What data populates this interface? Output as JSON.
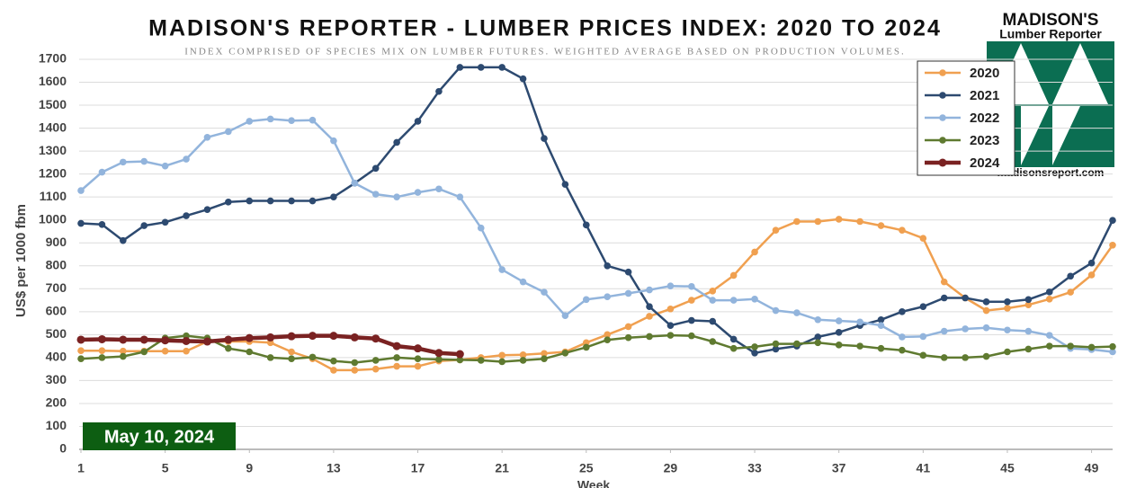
{
  "chart_data": {
    "type": "line",
    "title": "MADISON'S REPORTER - LUMBER PRICES INDEX: 2020 TO 2024",
    "subtitle": "INDEX COMPRISED OF SPECIES MIX ON LUMBER FUTURES. WEIGHTED AVERAGE BASED ON PRODUCTION VOLUMES.",
    "y_label": "US$ per 1000 fbm",
    "x_label": "Week",
    "annotation": "May 10, 2024",
    "logo": {
      "name": "MADISON'S",
      "tagline": "Lumber Reporter",
      "url": "madisonsreport.com"
    },
    "x": [
      1,
      2,
      3,
      4,
      5,
      6,
      7,
      8,
      9,
      10,
      11,
      12,
      13,
      14,
      15,
      16,
      17,
      18,
      19,
      20,
      21,
      22,
      23,
      24,
      25,
      26,
      27,
      28,
      29,
      30,
      31,
      32,
      33,
      34,
      35,
      36,
      37,
      38,
      39,
      40,
      41,
      42,
      43,
      44,
      45,
      46,
      47,
      48,
      49,
      50
    ],
    "xlim": [
      1,
      50
    ],
    "xticks": [
      1,
      5,
      9,
      13,
      17,
      21,
      25,
      29,
      33,
      37,
      41,
      45,
      49
    ],
    "ylim": [
      0,
      1700
    ],
    "yticks": [
      0,
      100,
      200,
      300,
      400,
      500,
      600,
      700,
      800,
      900,
      1000,
      1100,
      1200,
      1300,
      1400,
      1500,
      1600,
      1700
    ],
    "grid": true,
    "legend": "upper right",
    "series": [
      {
        "name": "2020",
        "color": "#f0a050",
        "values": [
          430,
          430,
          428,
          428,
          428,
          428,
          470,
          470,
          470,
          465,
          425,
          395,
          345,
          345,
          350,
          362,
          362,
          385,
          390,
          400,
          410,
          412,
          418,
          425,
          465,
          500,
          535,
          580,
          612,
          650,
          690,
          758,
          860,
          955,
          993,
          993,
          1003,
          993,
          975,
          955,
          920,
          730,
          660,
          605,
          615,
          630,
          655,
          685,
          760,
          890
        ]
      },
      {
        "name": "2021",
        "color": "#2d4a70",
        "values": [
          985,
          980,
          910,
          975,
          990,
          1018,
          1045,
          1078,
          1083,
          1083,
          1083,
          1083,
          1100,
          1160,
          1225,
          1338,
          1430,
          1560,
          1665,
          1665,
          1665,
          1615,
          1355,
          1155,
          978,
          800,
          773,
          622,
          540,
          562,
          558,
          480,
          420,
          437,
          450,
          490,
          510,
          540,
          565,
          600,
          622,
          660,
          660,
          643,
          643,
          653,
          686,
          755,
          812,
          998
        ]
      },
      {
        "name": "2022",
        "color": "#92b4dc",
        "values": [
          1128,
          1208,
          1252,
          1255,
          1235,
          1265,
          1360,
          1385,
          1430,
          1440,
          1433,
          1435,
          1345,
          1160,
          1112,
          1100,
          1120,
          1135,
          1100,
          965,
          783,
          730,
          685,
          583,
          653,
          665,
          680,
          695,
          712,
          710,
          650,
          650,
          655,
          605,
          595,
          565,
          560,
          555,
          540,
          490,
          492,
          515,
          525,
          530,
          520,
          515,
          497,
          440,
          435,
          425
        ]
      },
      {
        "name": "2023",
        "color": "#5f7a30",
        "values": [
          395,
          400,
          405,
          425,
          485,
          495,
          485,
          440,
          425,
          400,
          395,
          402,
          385,
          378,
          388,
          400,
          395,
          392,
          390,
          388,
          382,
          388,
          395,
          420,
          445,
          477,
          487,
          492,
          497,
          495,
          470,
          440,
          447,
          460,
          460,
          465,
          455,
          450,
          440,
          432,
          410,
          400,
          400,
          405,
          425,
          437,
          450,
          450,
          445,
          448
        ]
      },
      {
        "name": "2024",
        "color": "#7a2222",
        "values": [
          478,
          480,
          478,
          478,
          475,
          472,
          470,
          478,
          485,
          488,
          493,
          495,
          495,
          488,
          483,
          450,
          440,
          420,
          415,
          null,
          null,
          null,
          null,
          null,
          null,
          null,
          null,
          null,
          null,
          null,
          null,
          null,
          null,
          null,
          null,
          null,
          null,
          null,
          null,
          null,
          null,
          null,
          null,
          null,
          null,
          null,
          null,
          null,
          null,
          null
        ]
      }
    ]
  }
}
